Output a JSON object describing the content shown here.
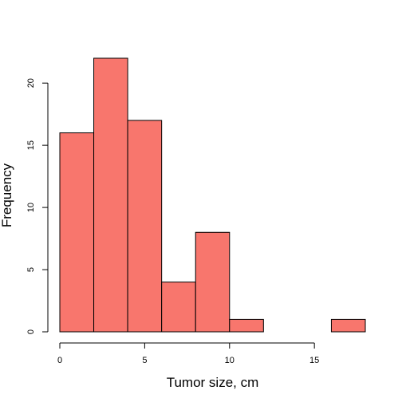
{
  "chart_data": {
    "type": "bar",
    "title": "",
    "xlabel": "Tumor size, cm",
    "ylabel": "Frequency",
    "bin_edges": [
      0,
      2,
      4,
      6,
      8,
      10,
      12,
      14,
      16,
      18
    ],
    "values": [
      16,
      22,
      17,
      4,
      8,
      1,
      0,
      0,
      1
    ],
    "xlim": [
      0,
      18
    ],
    "ylim": [
      0,
      22
    ],
    "x_ticks": [
      0,
      5,
      10,
      15
    ],
    "y_ticks": [
      0,
      5,
      10,
      15,
      20
    ],
    "grid": false,
    "legend": "none",
    "bar_color": "#F8766D",
    "edge_color": "#000000"
  }
}
